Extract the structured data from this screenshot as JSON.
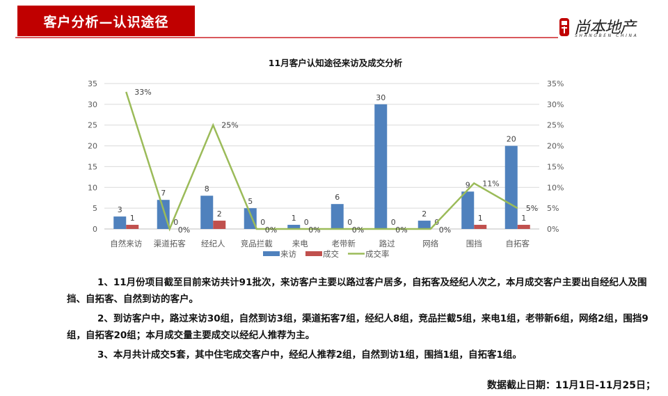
{
  "header": {
    "title": "客户分析—认识途径",
    "logo_cn": "尚本地产",
    "logo_en": "SHANGBEN CHINA",
    "accent_color": "#c00000"
  },
  "chart_data": {
    "type": "bar",
    "title": "11月客户认知途径来访及成交分析",
    "categories": [
      "自然来访",
      "渠道拓客",
      "经纪人",
      "竞品拦截",
      "来电",
      "老带新",
      "路过",
      "网络",
      "围挡",
      "自拓客"
    ],
    "series": [
      {
        "name": "来访",
        "type": "bar",
        "axis": "left",
        "color": "#4f81bd",
        "values": [
          3,
          7,
          8,
          5,
          1,
          6,
          30,
          2,
          9,
          20
        ],
        "labels": [
          "3",
          "7",
          "8",
          "5",
          "1",
          "6",
          "30",
          "2",
          "9",
          "20"
        ]
      },
      {
        "name": "成交",
        "type": "bar",
        "axis": "left",
        "color": "#c0504d",
        "values": [
          1,
          0,
          2,
          0,
          0,
          0,
          0,
          0,
          1,
          1
        ],
        "labels": [
          "1",
          "0",
          "2",
          "0",
          "0",
          "0",
          "0",
          "0",
          "1",
          "1"
        ]
      },
      {
        "name": "成交率",
        "type": "line",
        "axis": "right",
        "color": "#9bbb59",
        "values": [
          33,
          0,
          25,
          0,
          0,
          0,
          0,
          0,
          11,
          5
        ],
        "labels": [
          "33%",
          "0%",
          "25%",
          "0%",
          "0%",
          "0%",
          "0%",
          "0%",
          "11%",
          "5%"
        ]
      }
    ],
    "y_left": {
      "ticks": [
        "0",
        "5",
        "10",
        "15",
        "20",
        "25",
        "30",
        "35"
      ],
      "ylim": [
        0,
        35
      ]
    },
    "y_right": {
      "ticks": [
        "0%",
        "5%",
        "10%",
        "15%",
        "20%",
        "25%",
        "30%",
        "35%"
      ],
      "ylim": [
        0,
        35
      ]
    },
    "xlabel": "",
    "ylabel": "",
    "grid": true,
    "legend_position": "bottom",
    "legend": [
      "来访",
      "成交",
      "成交率"
    ]
  },
  "paragraphs": [
    {
      "text": "1、11月份项目截至目前来访共计91批次，来访客户主要以路过客户居多，自拓客及经纪人次之，本月成交客户主要出自经纪人及围挡、自拓客、自然到访的客户。"
    },
    {
      "text": "2、到访客户中，路过来访30组，自然到访3组，渠道拓客7组，经纪人8组，竞品拦截5组，来电1组，老带新6组，网络2组，围挡9组，自拓客20组；本月成交量主要成交以经纪人推荐为主。"
    },
    {
      "text": "3、本月共计成交5套，其中住宅成交客户中，经纪人推荐2组，自然到访1组，围挡1组，自拓客1组。"
    }
  ],
  "footer": {
    "note": "数据截止日期：11月1日-11月25日；"
  }
}
